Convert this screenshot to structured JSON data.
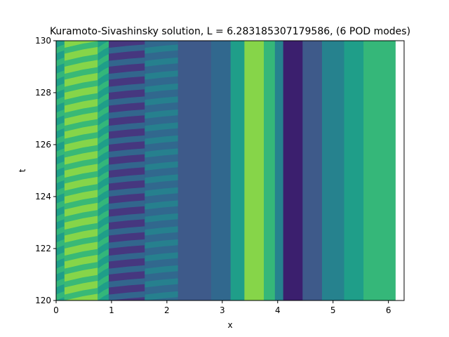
{
  "chart_data": {
    "type": "heatmap",
    "title": "Kuramoto-Sivashinsky solution, L = 6.283185307179586, (6 POD modes)",
    "xlabel": "x",
    "ylabel": "t",
    "xlim": [
      0,
      6.283185307179586
    ],
    "ylim": [
      120,
      130
    ],
    "x_data_extent": [
      0,
      6.13
    ],
    "xticks": [
      0,
      1,
      2,
      3,
      4,
      5,
      6
    ],
    "xtick_labels": [
      "0",
      "1",
      "2",
      "3",
      "4",
      "5",
      "6"
    ],
    "yticks": [
      120,
      122,
      124,
      126,
      128,
      130
    ],
    "ytick_labels": [
      "120",
      "122",
      "124",
      "126",
      "128",
      "130"
    ],
    "colormap": "viridis",
    "levels": [
      "#3b1f6e",
      "#46377f",
      "#3e5a8a",
      "#31688e",
      "#26828e",
      "#1f9e89",
      "#35b779",
      "#86d549"
    ],
    "stripe_period_t": 0.5,
    "bands": [
      {
        "x0": 0.0,
        "x1": 0.15,
        "level": 5,
        "osc": 1
      },
      {
        "x0": 0.15,
        "x1": 0.75,
        "level": 7,
        "osc": 2
      },
      {
        "x0": 0.75,
        "x1": 0.95,
        "level": 5,
        "osc": 2
      },
      {
        "x0": 0.95,
        "x1": 1.6,
        "level": 1,
        "osc": 1
      },
      {
        "x0": 1.6,
        "x1": 2.2,
        "level": 3,
        "osc": 1
      },
      {
        "x0": 2.2,
        "x1": 2.8,
        "level": 2,
        "osc": 0
      },
      {
        "x0": 2.8,
        "x1": 3.15,
        "level": 3,
        "osc": 0
      },
      {
        "x0": 3.15,
        "x1": 3.4,
        "level": 5,
        "osc": 0
      },
      {
        "x0": 3.4,
        "x1": 3.75,
        "level": 7,
        "osc": 0
      },
      {
        "x0": 3.75,
        "x1": 3.95,
        "level": 6,
        "osc": 0
      },
      {
        "x0": 3.95,
        "x1": 4.1,
        "level": 4,
        "osc": 0
      },
      {
        "x0": 4.1,
        "x1": 4.45,
        "level": 0,
        "osc": 0
      },
      {
        "x0": 4.45,
        "x1": 4.8,
        "level": 2,
        "osc": 0
      },
      {
        "x0": 4.8,
        "x1": 5.2,
        "level": 4,
        "osc": 0
      },
      {
        "x0": 5.2,
        "x1": 5.55,
        "level": 5,
        "osc": 0
      },
      {
        "x0": 5.55,
        "x1": 6.13,
        "level": 6,
        "osc": 0
      }
    ]
  }
}
